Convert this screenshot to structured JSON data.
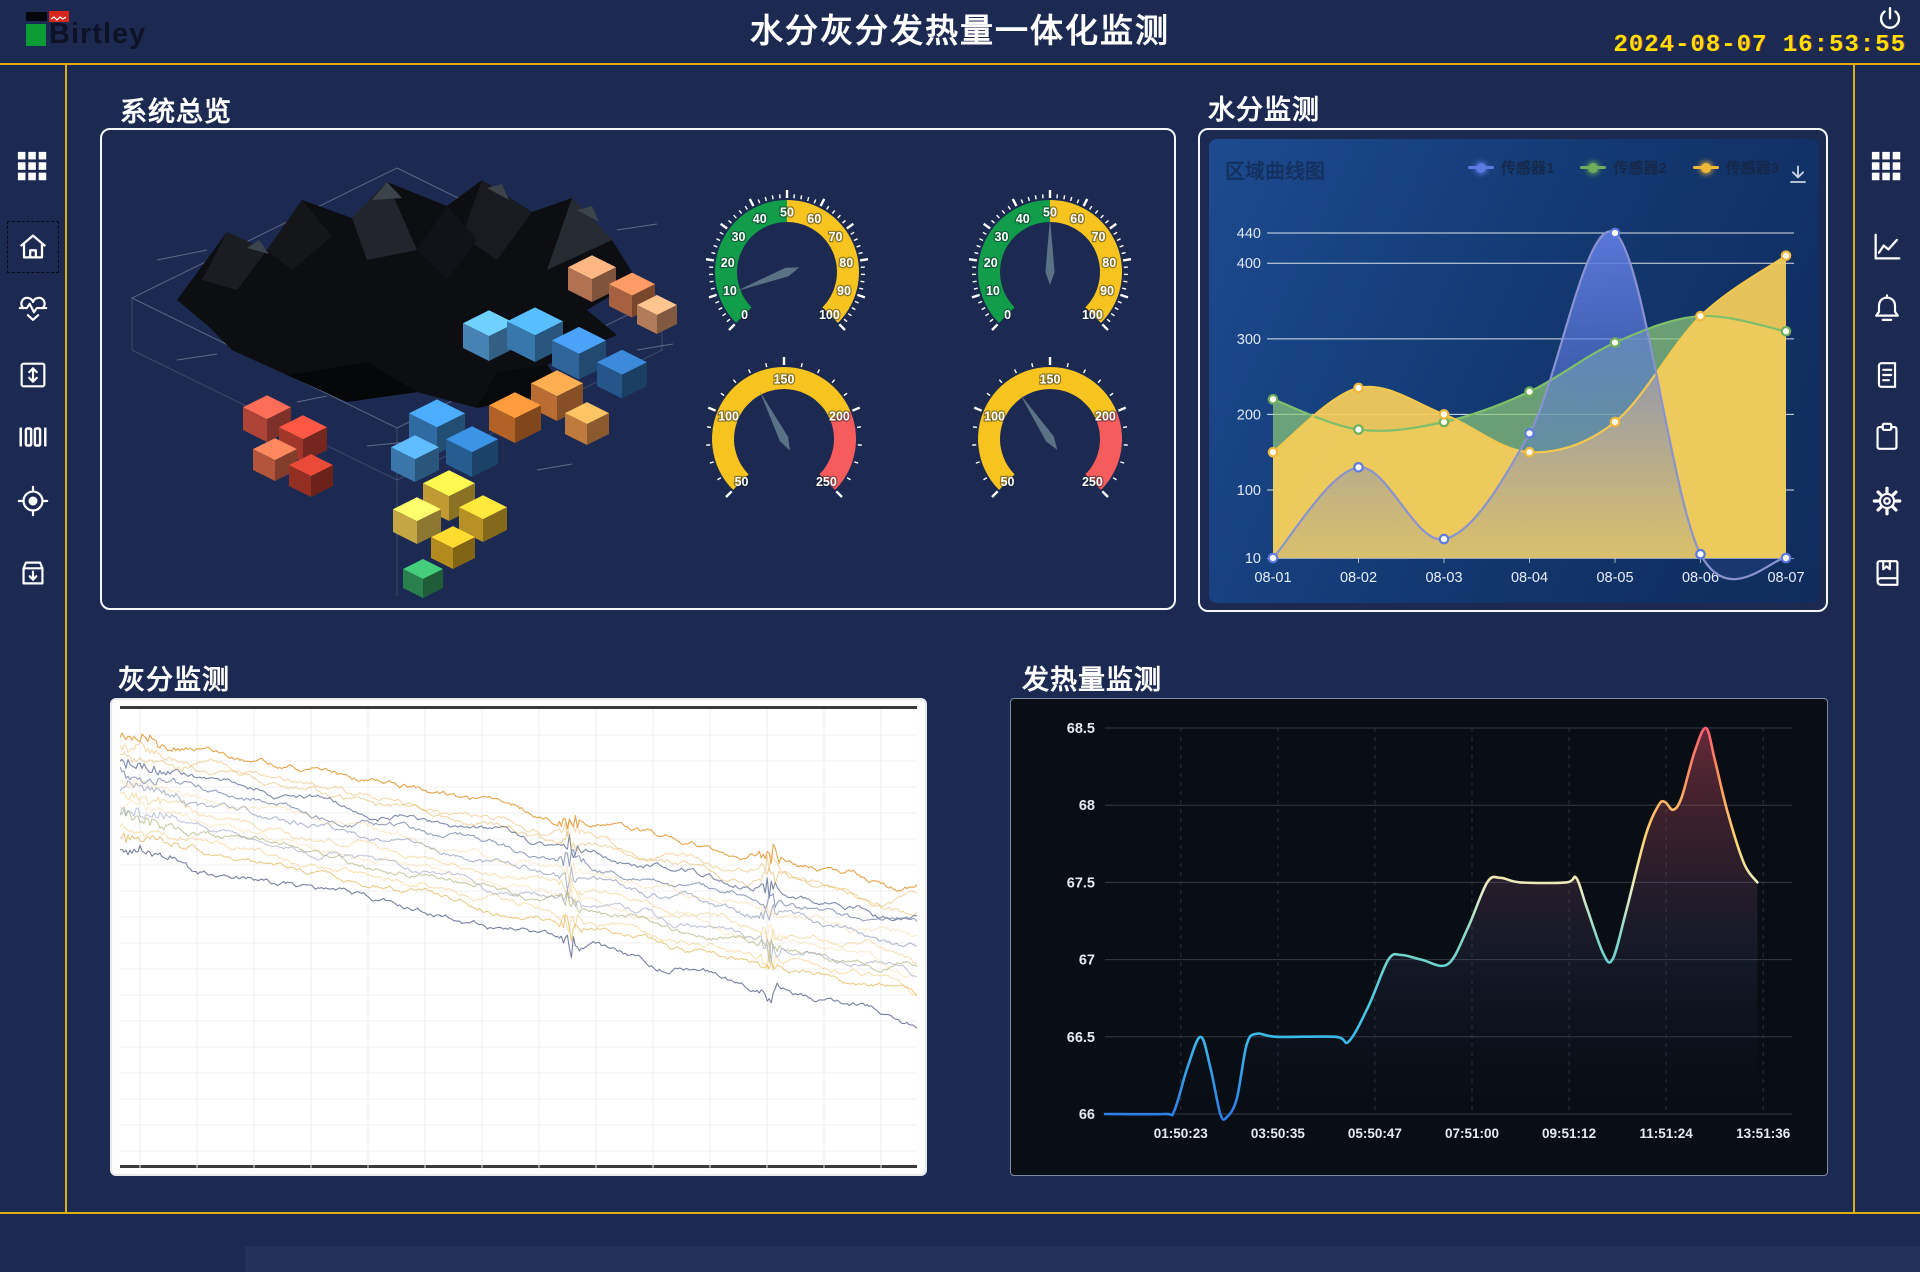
{
  "header": {
    "logo": {
      "text": "Birtley"
    },
    "title": "水分灰分发热量一体化监测",
    "clock": "2024-08-07 16:53:55"
  },
  "left_sidebar": {
    "items": [
      {
        "name": "menu-grid",
        "icon": "grid",
        "active": false
      },
      {
        "name": "home",
        "icon": "home",
        "active": true
      },
      {
        "name": "health-monitor",
        "icon": "heart-pulse",
        "active": false
      },
      {
        "name": "level-control",
        "icon": "elevator",
        "active": false
      },
      {
        "name": "columns-view",
        "icon": "columns",
        "active": false
      },
      {
        "name": "target-position",
        "icon": "target",
        "active": false
      },
      {
        "name": "archive-download",
        "icon": "archive",
        "active": false
      }
    ]
  },
  "right_sidebar": {
    "items": [
      {
        "name": "menu-grid",
        "icon": "grid"
      },
      {
        "name": "trend-charts",
        "icon": "line-chart"
      },
      {
        "name": "alarms",
        "icon": "bell"
      },
      {
        "name": "reports",
        "icon": "document"
      },
      {
        "name": "tasks",
        "icon": "clipboard"
      },
      {
        "name": "settings",
        "icon": "gear"
      },
      {
        "name": "manual",
        "icon": "book"
      }
    ]
  },
  "panels": {
    "overview": {
      "title": "系统总览",
      "gauges": [
        {
          "min": 0,
          "max": 100,
          "value": 9,
          "major_step": 10,
          "minor_step": 2,
          "zones": [
            {
              "from": 0,
              "to": 50,
              "color": "#129d4a"
            },
            {
              "from": 50,
              "to": 100,
              "color": "#f7c41f"
            }
          ]
        },
        {
          "min": 0,
          "max": 100,
          "value": 50,
          "major_step": 10,
          "minor_step": 2,
          "zones": [
            {
              "from": 0,
              "to": 50,
              "color": "#129d4a"
            },
            {
              "from": 50,
              "to": 100,
              "color": "#f7c41f"
            }
          ]
        },
        {
          "min": 50,
          "max": 250,
          "value": 130,
          "major_step": 50,
          "minor_step": 10,
          "zones": [
            {
              "from": 50,
              "to": 200,
              "color": "#f7c41f"
            },
            {
              "from": 200,
              "to": 250,
              "color": "#f75c5c"
            }
          ]
        },
        {
          "min": 50,
          "max": 250,
          "value": 125,
          "major_step": 50,
          "minor_step": 10,
          "zones": [
            {
              "from": 50,
              "to": 200,
              "color": "#f7c41f"
            },
            {
              "from": 200,
              "to": 250,
              "color": "#f75c5c"
            }
          ]
        }
      ]
    },
    "moisture": {
      "title": "水分监测",
      "chart_title": "区域曲线图",
      "chart_data": {
        "type": "area",
        "x": [
          "08-01",
          "08-02",
          "08-03",
          "08-04",
          "08-05",
          "08-06",
          "08-07"
        ],
        "series": [
          {
            "name": "传感器1",
            "color": "#5c7ae0",
            "line": "#8a93cf",
            "fill": "rgba(92,122,220,0.9)",
            "values": [
              10,
              130,
              35,
              175,
              440,
              15,
              10
            ]
          },
          {
            "name": "传感器2",
            "color": "#6fae5a",
            "line": "#7fbf6a",
            "fill": "rgba(140,200,120,0.72)",
            "values": [
              220,
              180,
              190,
              230,
              295,
              330,
              310
            ]
          },
          {
            "name": "传感器3",
            "color": "#f0b83a",
            "line": "#f3c84e",
            "fill": "rgba(246,205,90,0.93)",
            "values": [
              150,
              235,
              200,
              150,
              190,
              330,
              410
            ]
          }
        ],
        "y_ticks": [
          10,
          100,
          200,
          300,
          400,
          440
        ],
        "ylim": [
          10,
          440
        ],
        "legend_position": "top-right",
        "grid": true
      }
    },
    "ash": {
      "title": "灰分监测",
      "chart_data": {
        "type": "line",
        "description": "multi-sensor ash trend curves drifting downward, unlabeled axes, white background",
        "series": [
          {
            "color": "#e29a35",
            "start": 0.06,
            "end": 0.38,
            "opacity": 0.9,
            "seed": 11
          },
          {
            "color": "#edb45c",
            "start": 0.09,
            "end": 0.42,
            "opacity": 0.5,
            "seed": 22
          },
          {
            "color": "#66749b",
            "start": 0.11,
            "end": 0.45,
            "opacity": 0.85,
            "seed": 33
          },
          {
            "color": "#7b88ab",
            "start": 0.14,
            "end": 0.48,
            "opacity": 0.8,
            "seed": 44
          },
          {
            "color": "#8e9aba",
            "start": 0.17,
            "end": 0.51,
            "opacity": 0.7,
            "seed": 55
          },
          {
            "color": "#f0c878",
            "start": 0.19,
            "end": 0.54,
            "opacity": 0.55,
            "seed": 66
          },
          {
            "color": "#f6d690",
            "start": 0.21,
            "end": 0.56,
            "opacity": 0.45,
            "seed": 77
          },
          {
            "color": "#a3aa6a",
            "start": 0.23,
            "end": 0.58,
            "opacity": 0.6,
            "seed": 88
          },
          {
            "color": "#f1c366",
            "start": 0.25,
            "end": 0.6,
            "opacity": 0.5,
            "seed": 99
          },
          {
            "color": "#e4b148",
            "start": 0.27,
            "end": 0.62,
            "opacity": 0.65,
            "seed": 110
          },
          {
            "color": "#97a2bf",
            "start": 0.22,
            "end": 0.57,
            "opacity": 0.6,
            "seed": 121
          },
          {
            "color": "#5f6a8d",
            "start": 0.3,
            "end": 0.68,
            "opacity": 0.85,
            "seed": 132
          },
          {
            "color": "#f3cf86",
            "start": 0.16,
            "end": 0.5,
            "opacity": 0.4,
            "seed": 143
          },
          {
            "color": "#dca93f",
            "start": 0.1,
            "end": 0.44,
            "opacity": 0.45,
            "seed": 154
          }
        ]
      }
    },
    "calorific": {
      "title": "发热量监测",
      "chart_data": {
        "type": "line",
        "ylim": [
          66,
          68.5
        ],
        "y_ticks": [
          66,
          66.5,
          67,
          67.5,
          68,
          68.5
        ],
        "x_ticks": [
          "01:50:23",
          "03:50:35",
          "05:50:47",
          "07:51:00",
          "09:51:12",
          "11:51:24",
          "13:51:36"
        ],
        "points": [
          [
            0,
            66
          ],
          [
            0.09,
            66
          ],
          [
            0.105,
            66.02
          ],
          [
            0.125,
            66.3
          ],
          [
            0.145,
            66.5
          ],
          [
            0.16,
            66.3
          ],
          [
            0.175,
            66.0
          ],
          [
            0.185,
            65.98
          ],
          [
            0.2,
            66.1
          ],
          [
            0.215,
            66.45
          ],
          [
            0.23,
            66.52
          ],
          [
            0.26,
            66.5
          ],
          [
            0.35,
            66.5
          ],
          [
            0.37,
            66.47
          ],
          [
            0.4,
            66.7
          ],
          [
            0.43,
            67.0
          ],
          [
            0.45,
            67.03
          ],
          [
            0.48,
            67.0
          ],
          [
            0.52,
            66.97
          ],
          [
            0.55,
            67.2
          ],
          [
            0.58,
            67.5
          ],
          [
            0.6,
            67.53
          ],
          [
            0.63,
            67.5
          ],
          [
            0.7,
            67.5
          ],
          [
            0.715,
            67.53
          ],
          [
            0.73,
            67.35
          ],
          [
            0.755,
            67.05
          ],
          [
            0.77,
            67.0
          ],
          [
            0.79,
            67.3
          ],
          [
            0.82,
            67.8
          ],
          [
            0.84,
            68.0
          ],
          [
            0.85,
            68.02
          ],
          [
            0.862,
            67.97
          ],
          [
            0.875,
            68.05
          ],
          [
            0.895,
            68.35
          ],
          [
            0.912,
            68.5
          ],
          [
            0.925,
            68.3
          ],
          [
            0.945,
            67.95
          ],
          [
            0.97,
            67.62
          ],
          [
            0.99,
            67.5
          ]
        ]
      }
    }
  },
  "colors": {
    "background": "#1c2a52",
    "accent_line": "#dcae12",
    "clock": "#ffdf00",
    "panel_border": "#f3f6fb",
    "gauge_green": "#129d4a",
    "gauge_yellow": "#f7c41f",
    "gauge_red": "#f75c5c",
    "needle": "#5e7689"
  }
}
